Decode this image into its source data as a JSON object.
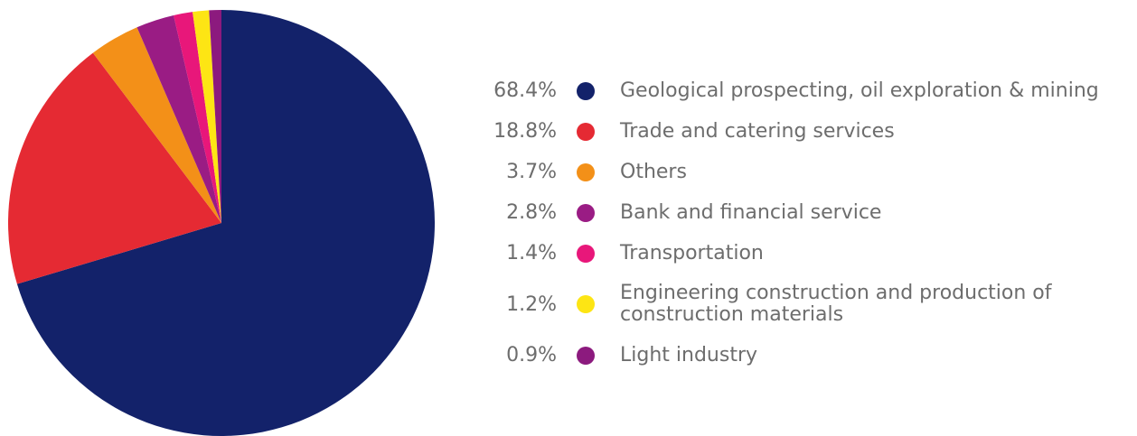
{
  "chart_data": {
    "type": "pie",
    "title": "",
    "slices": [
      {
        "label": "Geological prospecting, oil exploration & mining",
        "value": 68.4,
        "value_label": "68.4%",
        "color": "#13226a"
      },
      {
        "label": "Trade and catering services",
        "value": 18.8,
        "value_label": "18.8%",
        "color": "#e52a33"
      },
      {
        "label": "Others",
        "value": 3.7,
        "value_label": "3.7%",
        "color": "#f39018"
      },
      {
        "label": "Bank and financial service",
        "value": 2.8,
        "value_label": "2.8%",
        "color": "#9a1c84"
      },
      {
        "label": "Transportation",
        "value": 1.4,
        "value_label": "1.4%",
        "color": "#e8177a"
      },
      {
        "label": "Engineering construction and production of construction materials",
        "value": 1.2,
        "value_label": "1.2%",
        "color": "#fde514"
      },
      {
        "label": "Light industry",
        "value": 0.9,
        "value_label": "0.9%",
        "color": "#8c1a7e"
      }
    ],
    "legend_position": "right"
  }
}
